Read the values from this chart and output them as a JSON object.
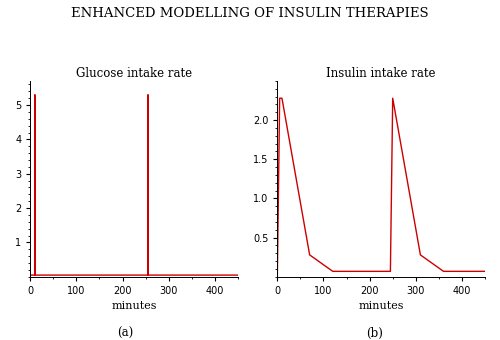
{
  "title": "ENHANCED MODELLING OF INSULIN THERAPIES",
  "subplot_a_title": "Glucose intake rate",
  "subplot_b_title": "Insulin intake rate",
  "xlabel": "minutes",
  "label_a": "(a)",
  "label_b": "(b)",
  "line_color": "#cc0000",
  "background_color": "#ffffff",
  "title_fontsize": 9.5,
  "subtitle_fontsize": 8.5,
  "axis_fontsize": 8,
  "glucose": {
    "x": [
      0,
      9.5,
      10,
      10.5,
      20,
      100,
      200,
      254.5,
      255,
      255.5,
      265,
      300,
      400,
      450
    ],
    "y": [
      0.05,
      0.05,
      5.3,
      0.05,
      0.05,
      0.05,
      0.05,
      0.05,
      5.3,
      0.05,
      0.05,
      0.05,
      0.05,
      0.05
    ],
    "xlim": [
      0,
      450
    ],
    "ylim": [
      0,
      5.7
    ],
    "yticks": [
      1,
      2,
      3,
      4,
      5
    ],
    "xticks": [
      0,
      100,
      200,
      300,
      400
    ]
  },
  "insulin": {
    "x": [
      0,
      5,
      10,
      70,
      120,
      200,
      240,
      245,
      250,
      310,
      360,
      430,
      450
    ],
    "y": [
      0.0,
      2.28,
      2.28,
      0.28,
      0.07,
      0.07,
      0.07,
      0.07,
      2.28,
      0.28,
      0.07,
      0.07,
      0.07
    ],
    "xlim": [
      0,
      450
    ],
    "ylim": [
      0,
      2.5
    ],
    "yticks": [
      0.5,
      1.0,
      1.5,
      2.0
    ],
    "xticks": [
      0,
      100,
      200,
      300,
      400
    ]
  }
}
